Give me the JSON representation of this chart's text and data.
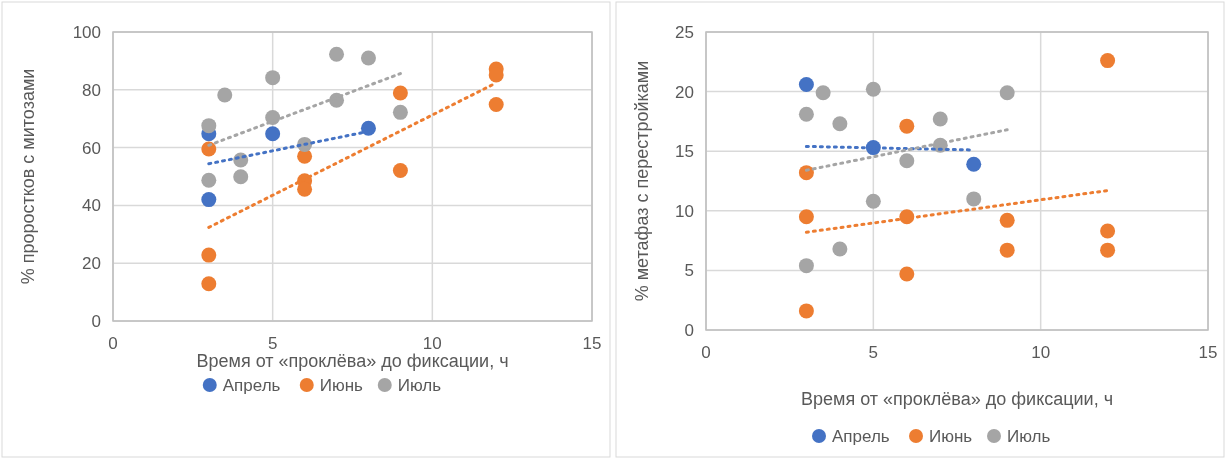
{
  "chart_data": [
    {
      "type": "scatter",
      "xlabel": "Время от «проклёва» до фиксации, ч",
      "ylabel": "% проростков с митозами",
      "xlim": [
        0,
        15
      ],
      "xticks": [
        0,
        5,
        10,
        15
      ],
      "ylim": [
        0,
        100
      ],
      "yticks": [
        0,
        20,
        40,
        60,
        80,
        100
      ],
      "grid": true,
      "legend": "bottom",
      "marker": "circle",
      "series": [
        {
          "name": "Апрель",
          "color": "#4472c4",
          "x": [
            3,
            3,
            5,
            8
          ],
          "values": [
            64.8,
            42.0,
            64.8,
            66.7
          ]
        },
        {
          "name": "Июнь",
          "color": "#ed7d31",
          "x": [
            3,
            3,
            3,
            6,
            6,
            6,
            9,
            9,
            12,
            12,
            12
          ],
          "values": [
            59.5,
            22.8,
            12.9,
            57.0,
            48.5,
            45.6,
            78.9,
            52.1,
            87.2,
            85.1,
            74.9
          ]
        },
        {
          "name": "Июль",
          "color": "#a5a5a5",
          "x": [
            3,
            3.5,
            5,
            7,
            8,
            7,
            5,
            9,
            6,
            4,
            4,
            3
          ],
          "values": [
            67.6,
            78.2,
            84.2,
            92.3,
            91.0,
            76.4,
            70.4,
            72.2,
            61.1,
            55.7,
            49.9,
            48.7
          ]
        },
        {
          "type": "line",
          "color": "#4472c4",
          "line_style": "dotted",
          "marker": "none",
          "x": [
            3,
            8
          ],
          "values": [
            54.4,
            65.6
          ]
        },
        {
          "type": "line",
          "color": "#ed7d31",
          "line_style": "dotted",
          "marker": "none",
          "x": [
            3,
            12
          ],
          "values": [
            32.4,
            82.4
          ]
        },
        {
          "type": "line",
          "color": "#a5a5a5",
          "line_style": "dotted",
          "marker": "none",
          "x": [
            3,
            9
          ],
          "values": [
            60.8,
            85.6
          ]
        }
      ]
    },
    {
      "type": "scatter",
      "xlabel": "Время от «проклёва» до фиксации, ч",
      "ylabel": "% метафаз с перестройками",
      "xlim": [
        0,
        15
      ],
      "xticks": [
        0,
        5,
        10,
        15
      ],
      "ylim": [
        0,
        25
      ],
      "yticks": [
        0,
        5,
        10,
        15,
        20,
        25
      ],
      "grid": true,
      "legend": "bottom",
      "marker": "circle",
      "series": [
        {
          "name": "Апрель",
          "color": "#4472c4",
          "x": [
            3,
            5,
            8
          ],
          "values": [
            20.6,
            15.3,
            13.9
          ]
        },
        {
          "name": "Июнь",
          "color": "#ed7d31",
          "x": [
            12,
            6,
            3,
            3,
            6,
            9,
            12,
            9,
            12,
            6,
            3
          ],
          "values": [
            22.6,
            17.1,
            13.2,
            9.5,
            9.5,
            9.2,
            8.3,
            6.7,
            6.7,
            4.7,
            1.6
          ]
        },
        {
          "name": "Июль",
          "color": "#a5a5a5",
          "x": [
            3.5,
            5,
            9,
            3,
            4,
            7,
            7,
            6,
            5,
            8,
            4,
            3
          ],
          "values": [
            19.9,
            20.2,
            19.9,
            18.1,
            17.3,
            17.7,
            15.5,
            14.2,
            10.8,
            11.0,
            6.8,
            5.4
          ]
        },
        {
          "type": "line",
          "color": "#4472c4",
          "line_style": "dotted",
          "marker": "none",
          "x": [
            3,
            8
          ],
          "values": [
            15.4,
            15.1
          ]
        },
        {
          "type": "line",
          "color": "#ed7d31",
          "line_style": "dotted",
          "marker": "none",
          "x": [
            3,
            12
          ],
          "values": [
            8.2,
            11.7
          ]
        },
        {
          "type": "line",
          "color": "#a5a5a5",
          "line_style": "dotted",
          "marker": "none",
          "x": [
            3,
            9
          ],
          "values": [
            13.4,
            16.8
          ]
        }
      ]
    }
  ]
}
